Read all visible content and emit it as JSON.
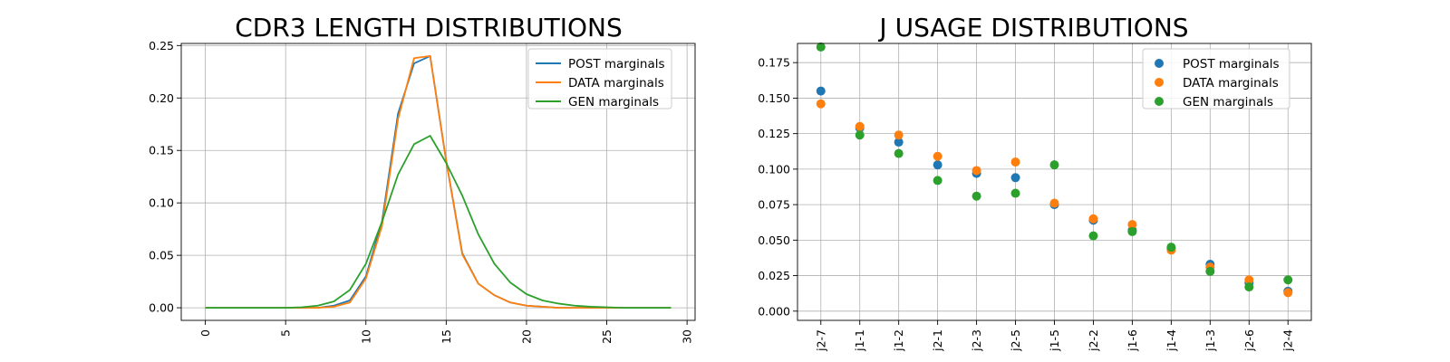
{
  "chart_data": [
    {
      "type": "line",
      "title": "CDR3 LENGTH DISTRIBUTIONS",
      "xlabel": "",
      "ylabel": "",
      "xlim": [
        -1.5,
        30.5
      ],
      "ylim": [
        -0.012,
        0.252
      ],
      "x_ticks": [
        0,
        5,
        10,
        15,
        20,
        25,
        30
      ],
      "y_ticks": [
        0.0,
        0.05,
        0.1,
        0.15,
        0.2,
        0.25
      ],
      "x_tick_labels": [
        "0",
        "5",
        "10",
        "15",
        "20",
        "25",
        "30"
      ],
      "y_tick_labels": [
        "0.00",
        "0.05",
        "0.10",
        "0.15",
        "0.20",
        "0.25"
      ],
      "grid": true,
      "legend_position": "top-right",
      "x": [
        0,
        1,
        2,
        3,
        4,
        5,
        6,
        7,
        8,
        9,
        10,
        11,
        12,
        13,
        14,
        15,
        16,
        17,
        18,
        19,
        20,
        21,
        22,
        23,
        24,
        25,
        26,
        27,
        28,
        29
      ],
      "series": [
        {
          "name": "POST marginals",
          "color": "#1f77b4",
          "values": [
            0,
            0,
            0,
            0,
            0,
            0,
            0,
            0,
            0.002,
            0.007,
            0.03,
            0.082,
            0.185,
            0.233,
            0.24,
            0.14,
            0.052,
            0.023,
            0.012,
            0.005,
            0.002,
            0.001,
            0,
            0,
            0,
            0,
            0,
            0,
            0,
            0
          ]
        },
        {
          "name": "DATA marginals",
          "color": "#ff7f0e",
          "values": [
            0,
            0,
            0,
            0,
            0,
            0,
            0,
            0,
            0.001,
            0.005,
            0.028,
            0.078,
            0.18,
            0.238,
            0.24,
            0.14,
            0.051,
            0.023,
            0.012,
            0.005,
            0.002,
            0.001,
            0,
            0,
            0,
            0,
            0,
            0,
            0,
            0
          ]
        },
        {
          "name": "GEN marginals",
          "color": "#2ca02c",
          "values": [
            0,
            0,
            0,
            0,
            0,
            0,
            0.0005,
            0.002,
            0.006,
            0.017,
            0.042,
            0.082,
            0.127,
            0.156,
            0.164,
            0.138,
            0.107,
            0.07,
            0.042,
            0.024,
            0.013,
            0.007,
            0.004,
            0.002,
            0.001,
            0.0005,
            0,
            0,
            0,
            0
          ]
        }
      ]
    },
    {
      "type": "scatter",
      "title": "J USAGE DISTRIBUTIONS",
      "xlabel": "",
      "ylabel": "",
      "ylim": [
        -0.0065,
        0.1885
      ],
      "categories": [
        "j2-7",
        "j1-1",
        "j1-2",
        "j2-1",
        "j2-3",
        "j2-5",
        "j1-5",
        "j2-2",
        "j1-6",
        "j1-4",
        "j1-3",
        "j2-6",
        "j2-4"
      ],
      "y_ticks": [
        0.0,
        0.025,
        0.05,
        0.075,
        0.1,
        0.125,
        0.15,
        0.175
      ],
      "y_tick_labels": [
        "0.000",
        "0.025",
        "0.050",
        "0.075",
        "0.100",
        "0.125",
        "0.150",
        "0.175"
      ],
      "grid": true,
      "legend_position": "top-right",
      "series": [
        {
          "name": "POST marginals",
          "color": "#1f77b4",
          "values": [
            0.155,
            0.129,
            0.119,
            0.103,
            0.097,
            0.094,
            0.075,
            0.064,
            0.057,
            0.044,
            0.033,
            0.02,
            0.014
          ]
        },
        {
          "name": "DATA marginals",
          "color": "#ff7f0e",
          "values": [
            0.146,
            0.13,
            0.124,
            0.109,
            0.099,
            0.105,
            0.076,
            0.065,
            0.061,
            0.043,
            0.031,
            0.022,
            0.013
          ]
        },
        {
          "name": "GEN marginals",
          "color": "#2ca02c",
          "values": [
            0.186,
            0.124,
            0.111,
            0.092,
            0.081,
            0.083,
            0.103,
            0.053,
            0.056,
            0.045,
            0.028,
            0.017,
            0.022
          ]
        }
      ]
    }
  ]
}
